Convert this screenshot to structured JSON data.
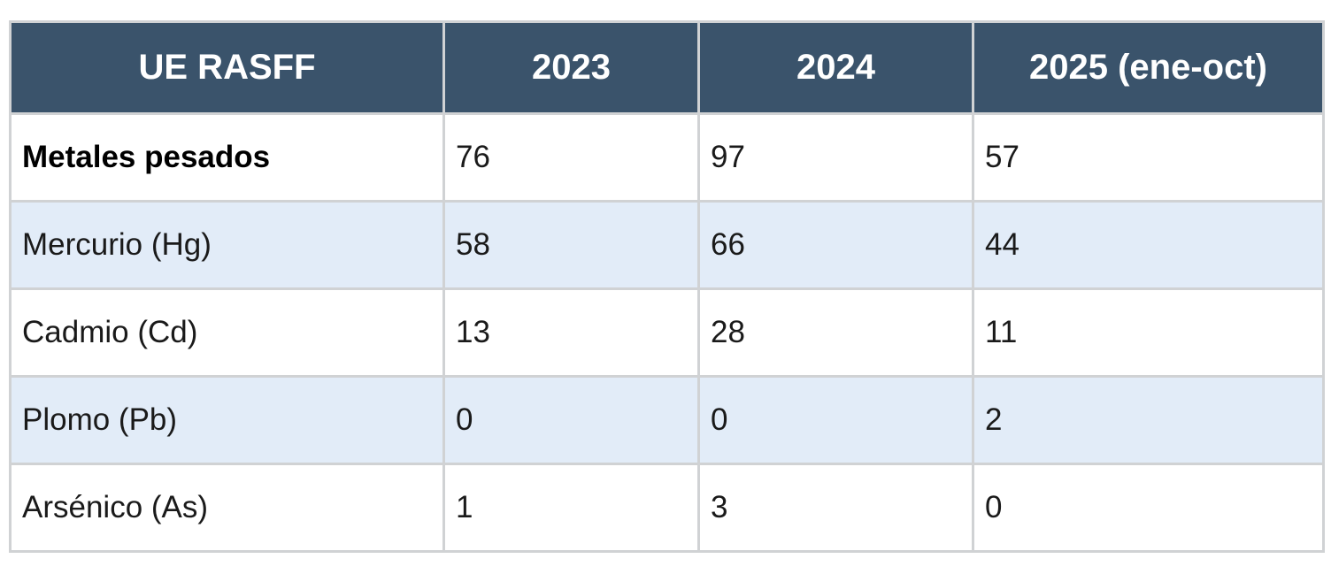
{
  "table": {
    "headers": [
      "UE RASFF",
      "2023",
      "2024",
      "2025 (ene-oct)"
    ],
    "rows": [
      {
        "label": "Metales pesados",
        "values": [
          "76",
          "97",
          "57"
        ]
      },
      {
        "label": "Mercurio (Hg)",
        "values": [
          "58",
          "66",
          "44"
        ]
      },
      {
        "label": "Cadmio (Cd)",
        "values": [
          "13",
          "28",
          "11"
        ]
      },
      {
        "label": "Plomo (Pb)",
        "values": [
          "0",
          "0",
          "2"
        ]
      },
      {
        "label": "Arsénico (As)",
        "values": [
          "1",
          "3",
          "0"
        ]
      }
    ]
  },
  "colors": {
    "header_background": "#3a536b",
    "header_text": "#ffffff",
    "alt_row_background": "#e2ecf8",
    "border": "#d0d2d4"
  }
}
